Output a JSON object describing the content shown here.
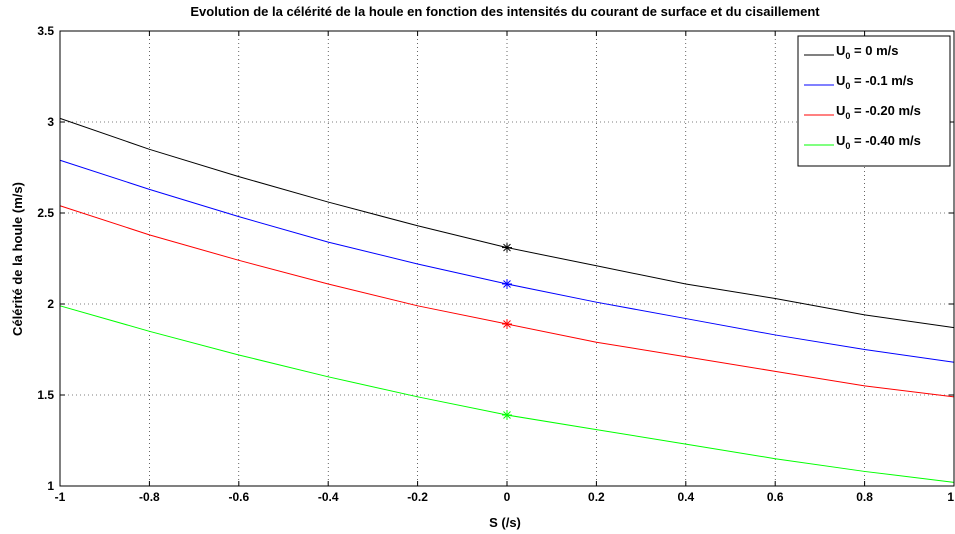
{
  "chart_data": {
    "type": "line",
    "title": "Evolution de la célérité de la houle en fonction des intensités du courant de surface et du cisaillement",
    "xlabel": "S (/s)",
    "ylabel": "Célérité de la houle (m/s)",
    "xlim": [
      -1,
      1
    ],
    "ylim": [
      1,
      3.5
    ],
    "xticks": [
      -1,
      -0.8,
      -0.6,
      -0.4,
      -0.2,
      0,
      0.2,
      0.4,
      0.6,
      0.8,
      1
    ],
    "xtick_labels": [
      "-1",
      "-0.8",
      "-0.6",
      "-0.4",
      "-0.2",
      "0",
      "0.2",
      "0.4",
      "0.6",
      "0.8",
      "1"
    ],
    "yticks": [
      1,
      1.5,
      2,
      2.5,
      3,
      3.5
    ],
    "ytick_labels": [
      "1",
      "1.5",
      "2",
      "2.5",
      "3",
      "3.5"
    ],
    "grid": true,
    "legend_position": "top-right",
    "x": [
      -1,
      -0.8,
      -0.6,
      -0.4,
      -0.2,
      0,
      0.2,
      0.4,
      0.6,
      0.8,
      1
    ],
    "series": [
      {
        "legend_main": "U",
        "legend_sub": "0",
        "legend_rest": " = 0 m/s",
        "color": "#000000",
        "values": [
          3.02,
          2.85,
          2.7,
          2.56,
          2.43,
          2.31,
          2.21,
          2.11,
          2.03,
          1.94,
          1.87
        ],
        "marker_y": 2.31
      },
      {
        "legend_main": "U",
        "legend_sub": "0",
        "legend_rest": " = -0.1 m/s",
        "color": "#0000ff",
        "values": [
          2.79,
          2.63,
          2.48,
          2.34,
          2.22,
          2.11,
          2.01,
          1.92,
          1.83,
          1.75,
          1.68
        ],
        "marker_y": 2.11
      },
      {
        "legend_main": "U",
        "legend_sub": "0",
        "legend_rest": " = -0.20 m/s",
        "color": "#ff0000",
        "values": [
          2.54,
          2.38,
          2.24,
          2.11,
          1.99,
          1.89,
          1.79,
          1.71,
          1.63,
          1.55,
          1.49
        ],
        "marker_y": 1.89
      },
      {
        "legend_main": "U",
        "legend_sub": "0",
        "legend_rest": " = -0.40 m/s",
        "color": "#00ff00",
        "values": [
          1.99,
          1.85,
          1.72,
          1.6,
          1.49,
          1.39,
          1.31,
          1.23,
          1.15,
          1.08,
          1.02
        ],
        "marker_y": 1.39
      }
    ]
  }
}
